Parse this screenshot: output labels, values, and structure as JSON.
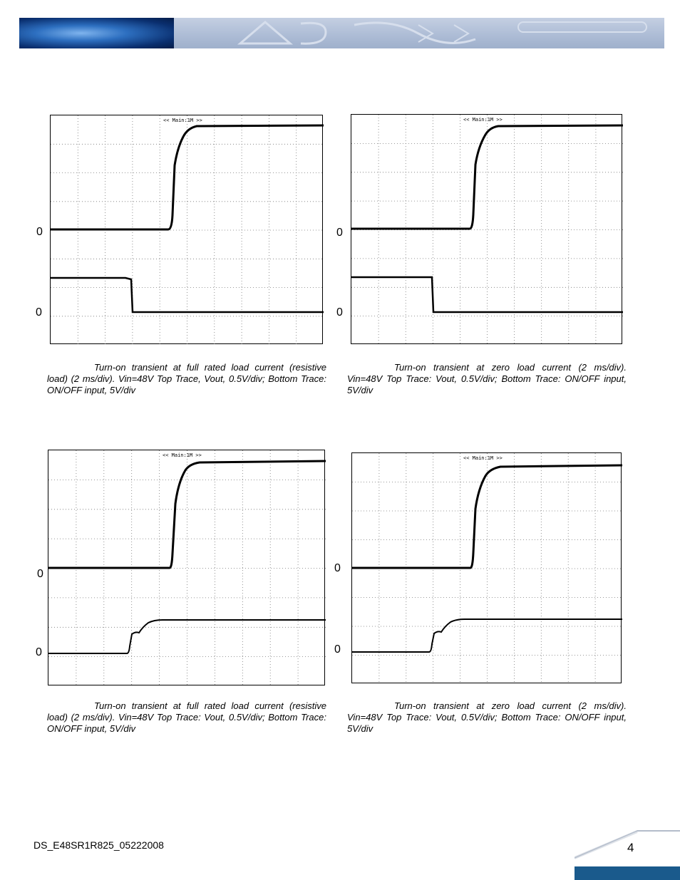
{
  "footer": {
    "doc_id": "DS_E48SR1R825_05222008",
    "page_number": "4"
  },
  "scopes": [
    {
      "header": "<< Main:1M >>",
      "zero_top": "0",
      "zero_bottom": "0",
      "bottom_style": "step-down"
    },
    {
      "header": "<< Main:1M >>",
      "zero_top": "0",
      "zero_bottom": "0",
      "bottom_style": "step-down"
    },
    {
      "header": "<< Main:1M >>",
      "zero_top": "0",
      "zero_bottom": "0",
      "bottom_style": "step-up"
    },
    {
      "header": "<< Main:1M >>",
      "zero_top": "0",
      "zero_bottom": "0",
      "bottom_style": "step-up"
    }
  ],
  "captions": [
    "Turn-on transient at full rated load current (resistive load) (2 ms/div). Vin=48V Top Trace, Vout, 0.5V/div; Bottom Trace: ON/OFF input, 5V/div",
    "Turn-on transient at zero load current (2 ms/div). Vin=48V Top Trace: Vout, 0.5V/div; Bottom Trace: ON/OFF input, 5V/div",
    "Turn-on transient at full rated load current (resistive load) (2 ms/div). Vin=48V Top Trace: Vout, 0.5V/div; Bottom Trace: ON/OFF input, 5V/div",
    "Turn-on transient at zero load current (2 ms/div). Vin=48V Top Trace: Vout, 0.5V/div; Bottom Trace: ON/OFF input, 5V/div"
  ],
  "colors": {
    "banner_blue": "#1a5a8c",
    "trace": "#000000"
  }
}
